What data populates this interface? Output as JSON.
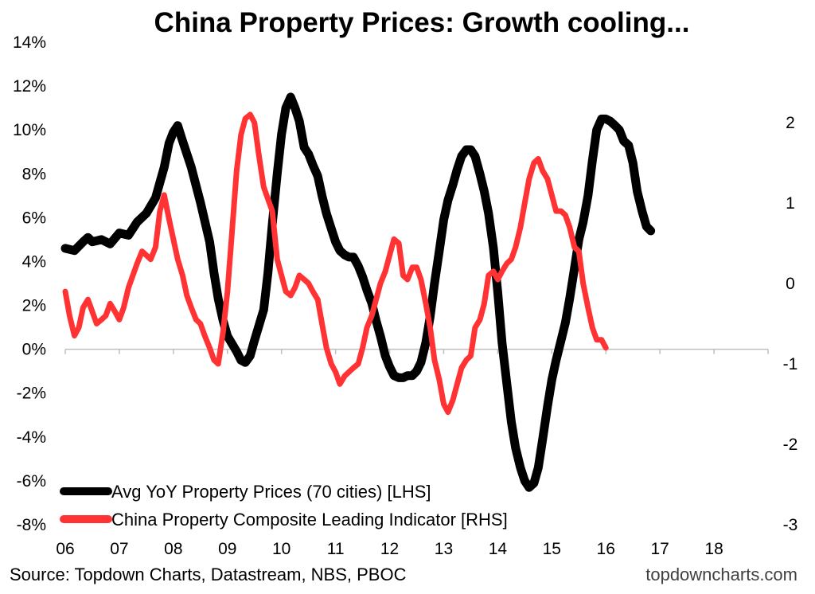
{
  "chart_data": {
    "type": "line",
    "title": "China Property Prices: Growth cooling...",
    "x_tick_labels": [
      "06",
      "07",
      "08",
      "09",
      "10",
      "11",
      "12",
      "13",
      "14",
      "15",
      "16",
      "17",
      "18"
    ],
    "left_axis": {
      "ylim": [
        -8,
        14
      ],
      "tick_values": [
        14,
        12,
        10,
        8,
        6,
        4,
        2,
        0,
        -2,
        -4,
        -6,
        -8
      ],
      "tick_labels": [
        "14%",
        "12%",
        "10%",
        "8%",
        "6%",
        "4%",
        "2%",
        "0%",
        "-2%",
        "-4%",
        "-6%",
        "-8%"
      ]
    },
    "right_axis": {
      "ylim": [
        -3,
        3
      ],
      "tick_values": [
        2,
        1,
        0,
        -1,
        -2,
        -3
      ],
      "tick_labels": [
        "2",
        "1",
        "0",
        "-1",
        "-2",
        "-3"
      ]
    },
    "x_range": [
      2006.0,
      2019.0
    ],
    "series": [
      {
        "name": "Avg YoY Property Prices (70 cities) [LHS]",
        "axis": "left",
        "color": "#000000",
        "points": [
          [
            2006.0,
            4.6
          ],
          [
            2006.17,
            4.5
          ],
          [
            2006.33,
            4.9
          ],
          [
            2006.42,
            5.1
          ],
          [
            2006.5,
            4.9
          ],
          [
            2006.67,
            5.0
          ],
          [
            2006.83,
            4.8
          ],
          [
            2007.0,
            5.3
          ],
          [
            2007.17,
            5.2
          ],
          [
            2007.33,
            5.8
          ],
          [
            2007.5,
            6.2
          ],
          [
            2007.67,
            6.9
          ],
          [
            2007.83,
            8.3
          ],
          [
            2007.92,
            9.4
          ],
          [
            2008.0,
            9.9
          ],
          [
            2008.08,
            10.2
          ],
          [
            2008.17,
            9.5
          ],
          [
            2008.33,
            8.3
          ],
          [
            2008.5,
            6.7
          ],
          [
            2008.67,
            4.9
          ],
          [
            2008.75,
            3.5
          ],
          [
            2008.83,
            2.3
          ],
          [
            2008.92,
            1.3
          ],
          [
            2009.0,
            0.6
          ],
          [
            2009.17,
            -0.1
          ],
          [
            2009.25,
            -0.5
          ],
          [
            2009.33,
            -0.6
          ],
          [
            2009.42,
            -0.3
          ],
          [
            2009.5,
            0.4
          ],
          [
            2009.67,
            1.8
          ],
          [
            2009.75,
            3.5
          ],
          [
            2009.83,
            5.7
          ],
          [
            2009.92,
            8.0
          ],
          [
            2010.0,
            9.8
          ],
          [
            2010.08,
            11.0
          ],
          [
            2010.17,
            11.5
          ],
          [
            2010.25,
            11.0
          ],
          [
            2010.33,
            10.4
          ],
          [
            2010.42,
            9.2
          ],
          [
            2010.5,
            8.9
          ],
          [
            2010.58,
            8.4
          ],
          [
            2010.67,
            7.9
          ],
          [
            2010.75,
            7.0
          ],
          [
            2010.83,
            6.2
          ],
          [
            2010.92,
            5.5
          ],
          [
            2011.0,
            4.9
          ],
          [
            2011.08,
            4.5
          ],
          [
            2011.17,
            4.3
          ],
          [
            2011.25,
            4.2
          ],
          [
            2011.33,
            4.2
          ],
          [
            2011.42,
            3.8
          ],
          [
            2011.5,
            3.3
          ],
          [
            2011.58,
            2.7
          ],
          [
            2011.67,
            2.1
          ],
          [
            2011.75,
            1.3
          ],
          [
            2011.83,
            0.6
          ],
          [
            2011.92,
            -0.3
          ],
          [
            2012.0,
            -0.8
          ],
          [
            2012.08,
            -1.2
          ],
          [
            2012.17,
            -1.3
          ],
          [
            2012.25,
            -1.3
          ],
          [
            2012.33,
            -1.2
          ],
          [
            2012.42,
            -1.2
          ],
          [
            2012.5,
            -1.0
          ],
          [
            2012.58,
            -0.6
          ],
          [
            2012.67,
            0.3
          ],
          [
            2012.75,
            1.5
          ],
          [
            2012.83,
            3.0
          ],
          [
            2012.92,
            4.5
          ],
          [
            2013.0,
            5.9
          ],
          [
            2013.08,
            6.8
          ],
          [
            2013.17,
            7.5
          ],
          [
            2013.25,
            8.2
          ],
          [
            2013.33,
            8.8
          ],
          [
            2013.42,
            9.1
          ],
          [
            2013.5,
            9.1
          ],
          [
            2013.58,
            8.8
          ],
          [
            2013.67,
            8.0
          ],
          [
            2013.75,
            7.2
          ],
          [
            2013.83,
            6.2
          ],
          [
            2013.92,
            4.6
          ],
          [
            2014.0,
            2.6
          ],
          [
            2014.08,
            0.3
          ],
          [
            2014.17,
            -1.6
          ],
          [
            2014.25,
            -3.3
          ],
          [
            2014.33,
            -4.5
          ],
          [
            2014.42,
            -5.4
          ],
          [
            2014.5,
            -6.0
          ],
          [
            2014.58,
            -6.3
          ],
          [
            2014.67,
            -6.1
          ],
          [
            2014.75,
            -5.4
          ],
          [
            2014.83,
            -4.1
          ],
          [
            2014.92,
            -2.6
          ],
          [
            2015.0,
            -1.4
          ],
          [
            2015.08,
            -0.5
          ],
          [
            2015.17,
            0.4
          ],
          [
            2015.25,
            1.2
          ],
          [
            2015.33,
            2.3
          ],
          [
            2015.42,
            3.7
          ],
          [
            2015.5,
            5.0
          ],
          [
            2015.58,
            5.8
          ],
          [
            2015.67,
            7.0
          ],
          [
            2015.75,
            8.6
          ],
          [
            2015.83,
            10.0
          ],
          [
            2015.92,
            10.5
          ],
          [
            2016.0,
            10.5
          ],
          [
            2016.08,
            10.4
          ],
          [
            2016.17,
            10.2
          ],
          [
            2016.25,
            10.0
          ],
          [
            2016.33,
            9.5
          ],
          [
            2016.42,
            9.3
          ],
          [
            2016.5,
            8.5
          ],
          [
            2016.58,
            7.2
          ],
          [
            2016.67,
            6.3
          ],
          [
            2016.75,
            5.6
          ],
          [
            2016.83,
            5.4
          ]
        ]
      },
      {
        "name": "China Property Composite Leading Indicator [RHS]",
        "axis": "right",
        "color": "#ff3333",
        "points": [
          [
            2006.0,
            -0.1
          ],
          [
            2006.08,
            -0.4
          ],
          [
            2006.17,
            -0.65
          ],
          [
            2006.25,
            -0.55
          ],
          [
            2006.33,
            -0.3
          ],
          [
            2006.42,
            -0.2
          ],
          [
            2006.5,
            -0.35
          ],
          [
            2006.58,
            -0.5
          ],
          [
            2006.67,
            -0.45
          ],
          [
            2006.75,
            -0.4
          ],
          [
            2006.83,
            -0.25
          ],
          [
            2006.92,
            -0.35
          ],
          [
            2007.0,
            -0.45
          ],
          [
            2007.08,
            -0.3
          ],
          [
            2007.17,
            -0.05
          ],
          [
            2007.25,
            0.1
          ],
          [
            2007.33,
            0.25
          ],
          [
            2007.42,
            0.4
          ],
          [
            2007.5,
            0.35
          ],
          [
            2007.58,
            0.3
          ],
          [
            2007.67,
            0.45
          ],
          [
            2007.75,
            0.9
          ],
          [
            2007.83,
            1.1
          ],
          [
            2007.92,
            0.8
          ],
          [
            2008.0,
            0.55
          ],
          [
            2008.08,
            0.3
          ],
          [
            2008.17,
            0.1
          ],
          [
            2008.25,
            -0.15
          ],
          [
            2008.33,
            -0.3
          ],
          [
            2008.42,
            -0.45
          ],
          [
            2008.5,
            -0.5
          ],
          [
            2008.58,
            -0.65
          ],
          [
            2008.67,
            -0.8
          ],
          [
            2008.75,
            -0.95
          ],
          [
            2008.83,
            -1.0
          ],
          [
            2008.92,
            -0.6
          ],
          [
            2009.0,
            -0.1
          ],
          [
            2009.08,
            0.6
          ],
          [
            2009.17,
            1.4
          ],
          [
            2009.25,
            1.85
          ],
          [
            2009.33,
            2.05
          ],
          [
            2009.42,
            2.1
          ],
          [
            2009.5,
            2.0
          ],
          [
            2009.58,
            1.6
          ],
          [
            2009.67,
            1.2
          ],
          [
            2009.75,
            1.05
          ],
          [
            2009.83,
            0.9
          ],
          [
            2009.92,
            0.3
          ],
          [
            2010.0,
            0.1
          ],
          [
            2010.08,
            -0.1
          ],
          [
            2010.17,
            -0.15
          ],
          [
            2010.25,
            -0.05
          ],
          [
            2010.33,
            0.1
          ],
          [
            2010.42,
            0.05
          ],
          [
            2010.5,
            0.0
          ],
          [
            2010.58,
            -0.1
          ],
          [
            2010.67,
            -0.2
          ],
          [
            2010.75,
            -0.5
          ],
          [
            2010.83,
            -0.8
          ],
          [
            2010.92,
            -1.0
          ],
          [
            2011.0,
            -1.1
          ],
          [
            2011.08,
            -1.25
          ],
          [
            2011.17,
            -1.15
          ],
          [
            2011.25,
            -1.1
          ],
          [
            2011.33,
            -1.05
          ],
          [
            2011.42,
            -1.0
          ],
          [
            2011.5,
            -0.8
          ],
          [
            2011.58,
            -0.55
          ],
          [
            2011.67,
            -0.4
          ],
          [
            2011.75,
            -0.2
          ],
          [
            2011.83,
            0.0
          ],
          [
            2011.92,
            0.15
          ],
          [
            2012.0,
            0.35
          ],
          [
            2012.08,
            0.55
          ],
          [
            2012.17,
            0.5
          ],
          [
            2012.25,
            0.1
          ],
          [
            2012.33,
            0.05
          ],
          [
            2012.42,
            0.2
          ],
          [
            2012.5,
            0.2
          ],
          [
            2012.58,
            0.05
          ],
          [
            2012.67,
            -0.25
          ],
          [
            2012.75,
            -0.55
          ],
          [
            2012.83,
            -0.95
          ],
          [
            2012.92,
            -1.2
          ],
          [
            2013.0,
            -1.5
          ],
          [
            2013.08,
            -1.6
          ],
          [
            2013.17,
            -1.45
          ],
          [
            2013.25,
            -1.25
          ],
          [
            2013.33,
            -1.05
          ],
          [
            2013.42,
            -0.95
          ],
          [
            2013.5,
            -0.9
          ],
          [
            2013.58,
            -0.55
          ],
          [
            2013.67,
            -0.45
          ],
          [
            2013.75,
            -0.25
          ],
          [
            2013.83,
            0.1
          ],
          [
            2013.92,
            0.15
          ],
          [
            2014.0,
            0.05
          ],
          [
            2014.08,
            0.15
          ],
          [
            2014.17,
            0.25
          ],
          [
            2014.25,
            0.3
          ],
          [
            2014.33,
            0.45
          ],
          [
            2014.42,
            0.7
          ],
          [
            2014.5,
            1.0
          ],
          [
            2014.58,
            1.3
          ],
          [
            2014.67,
            1.5
          ],
          [
            2014.75,
            1.55
          ],
          [
            2014.83,
            1.4
          ],
          [
            2014.92,
            1.3
          ],
          [
            2015.0,
            1.1
          ],
          [
            2015.08,
            0.9
          ],
          [
            2015.17,
            0.9
          ],
          [
            2015.25,
            0.85
          ],
          [
            2015.33,
            0.7
          ],
          [
            2015.42,
            0.45
          ],
          [
            2015.5,
            0.4
          ],
          [
            2015.58,
            0.0
          ],
          [
            2015.67,
            -0.3
          ],
          [
            2015.75,
            -0.55
          ],
          [
            2015.83,
            -0.7
          ],
          [
            2015.92,
            -0.7
          ],
          [
            2016.0,
            -0.8
          ]
        ]
      }
    ],
    "legend": {
      "position": "bottom-left",
      "entries": [
        {
          "label": "Avg YoY Property Prices (70 cities) [LHS]",
          "color": "#000000"
        },
        {
          "label": "China Property Composite Leading Indicator [RHS]",
          "color": "#ff3333"
        }
      ]
    }
  },
  "footer": {
    "source": "Source: Topdown Charts, Datastream, NBS, PBOC",
    "brand": "topdowncharts.com"
  }
}
